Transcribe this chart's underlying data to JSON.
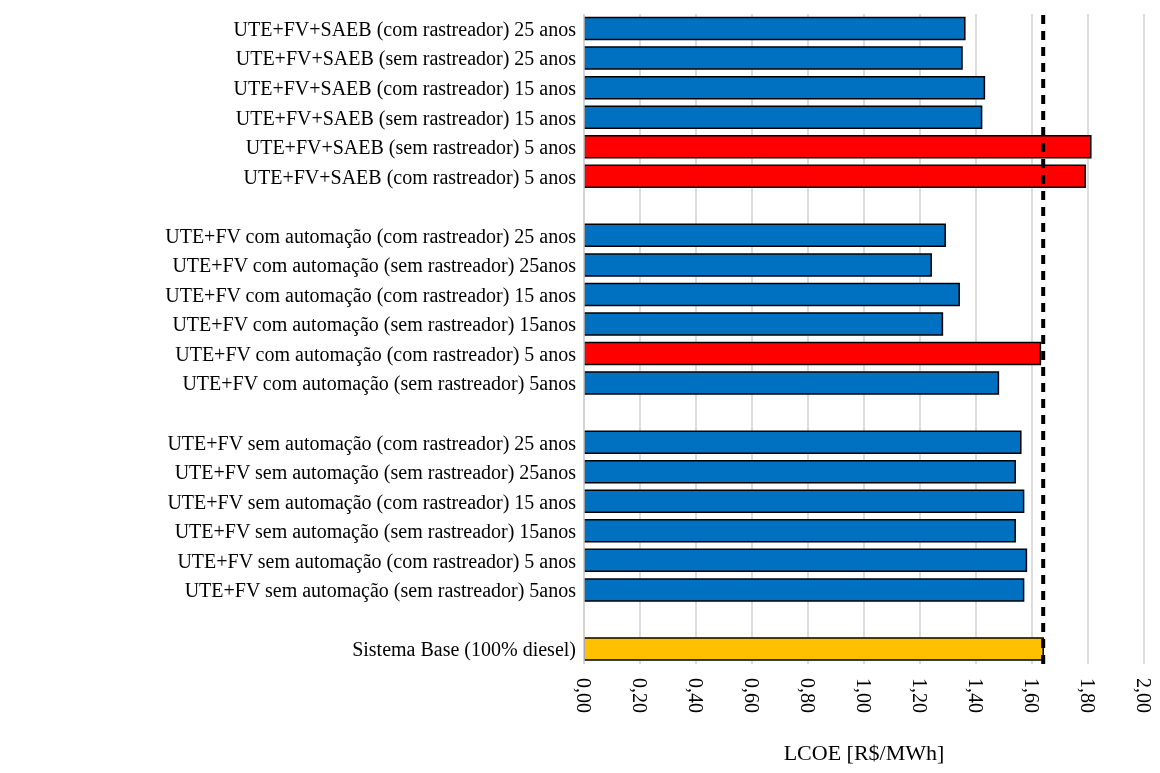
{
  "chart_data": {
    "type": "bar",
    "orientation": "horizontal",
    "xlabel": "LCOE [R$/MWh]",
    "categories": [
      "UTE+FV+SAEB (com rastreador) 25 anos",
      "UTE+FV+SAEB (sem rastreador) 25 anos",
      "UTE+FV+SAEB (com rastreador) 15 anos",
      "UTE+FV+SAEB (sem rastreador) 15 anos",
      "UTE+FV+SAEB (sem rastreador) 5 anos",
      "UTE+FV+SAEB (com rastreador) 5 anos",
      null,
      "UTE+FV com automação (com rastreador) 25 anos",
      "UTE+FV com automação (sem rastreador) 25anos",
      "UTE+FV com automação (com rastreador) 15 anos",
      "UTE+FV com automação (sem rastreador) 15anos",
      "UTE+FV com automação (com rastreador) 5 anos",
      "UTE+FV com automação (sem rastreador) 5anos",
      null,
      "UTE+FV sem automação (com rastreador) 25 anos",
      "UTE+FV sem automação (sem rastreador) 25anos",
      "UTE+FV sem automação (com rastreador) 15 anos",
      "UTE+FV sem automação (sem rastreador) 15anos",
      "UTE+FV sem automação (com rastreador) 5 anos",
      "UTE+FV sem automação (sem rastreador) 5anos",
      null,
      "Sistema Base (100% diesel)"
    ],
    "values": [
      1.36,
      1.35,
      1.43,
      1.42,
      1.81,
      1.79,
      null,
      1.29,
      1.24,
      1.34,
      1.28,
      1.63,
      1.48,
      null,
      1.56,
      1.54,
      1.57,
      1.54,
      1.58,
      1.57,
      null,
      1.64
    ],
    "colors": [
      "#0070c0",
      "#0070c0",
      "#0070c0",
      "#0070c0",
      "#ff0000",
      "#ff0000",
      "#0070c0",
      "#0070c0",
      "#0070c0",
      "#0070c0",
      "#0070c0",
      "#ff0000",
      "#0070c0",
      "#0070c0",
      "#0070c0",
      "#0070c0",
      "#0070c0",
      "#0070c0",
      "#0070c0",
      "#0070c0",
      "#0070c0",
      "#ffc000"
    ],
    "xlim": [
      0,
      2
    ],
    "xticks": [
      {
        "value": 0,
        "label": "0,00"
      },
      {
        "value": 0.2,
        "label": "0,20"
      },
      {
        "value": 0.4,
        "label": "0,40"
      },
      {
        "value": 0.6,
        "label": "0,60"
      },
      {
        "value": 0.8,
        "label": "0,80"
      },
      {
        "value": 1,
        "label": "1,00"
      },
      {
        "value": 1.2,
        "label": "1,20"
      },
      {
        "value": 1.4,
        "label": "1,40"
      },
      {
        "value": 1.6,
        "label": "1,60"
      },
      {
        "value": 1.8,
        "label": "1,80"
      },
      {
        "value": 2,
        "label": "2,00"
      }
    ],
    "grid": "x",
    "ref_lines": [
      {
        "axis": "x",
        "value": 1.64,
        "color": "#000000",
        "line_style": "dashed"
      }
    ]
  }
}
